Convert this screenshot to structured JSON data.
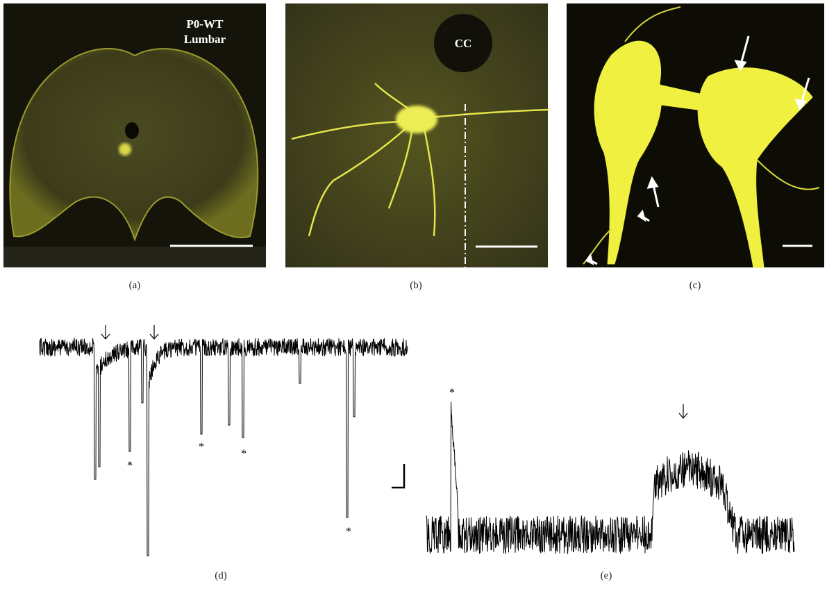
{
  "panels": [
    {
      "label": "(a)",
      "annotations": [
        "P0-WT",
        "Lumbar"
      ]
    },
    {
      "label": "(b)",
      "annotations": [
        "CC"
      ]
    },
    {
      "label": "(c)"
    },
    {
      "label": "(d)",
      "markers": [
        "*",
        "*",
        "*",
        "*"
      ]
    },
    {
      "label": "(e)",
      "markers": [
        "*"
      ]
    }
  ]
}
